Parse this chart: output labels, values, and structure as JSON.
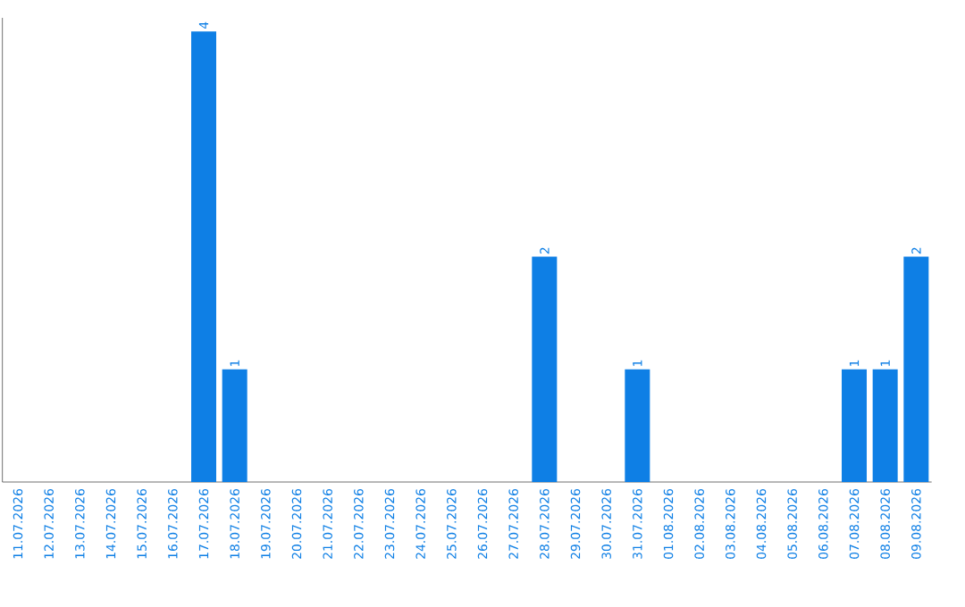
{
  "chart_data": {
    "type": "bar",
    "categories": [
      "11.07.2026",
      "12.07.2026",
      "13.07.2026",
      "14.07.2026",
      "15.07.2026",
      "16.07.2026",
      "17.07.2026",
      "18.07.2026",
      "19.07.2026",
      "20.07.2026",
      "21.07.2026",
      "22.07.2026",
      "23.07.2026",
      "24.07.2026",
      "25.07.2026",
      "26.07.2026",
      "27.07.2026",
      "28.07.2026",
      "29.07.2026",
      "30.07.2026",
      "31.07.2026",
      "01.08.2026",
      "02.08.2026",
      "03.08.2026",
      "04.08.2026",
      "05.08.2026",
      "06.08.2026",
      "07.08.2026",
      "08.08.2026",
      "09.08.2026"
    ],
    "values": [
      0,
      0,
      0,
      0,
      0,
      0,
      4,
      1,
      0,
      0,
      0,
      0,
      0,
      0,
      0,
      0,
      0,
      2,
      0,
      0,
      1,
      0,
      0,
      0,
      0,
      0,
      0,
      1,
      1,
      2
    ],
    "value_labels": [
      null,
      null,
      null,
      null,
      null,
      null,
      "4",
      "1",
      null,
      null,
      null,
      null,
      null,
      null,
      null,
      null,
      null,
      "2",
      null,
      null,
      "1",
      null,
      null,
      null,
      null,
      null,
      null,
      "1",
      "1",
      "2"
    ],
    "color": "#0e7fe5",
    "ylim": [
      0,
      4
    ],
    "tick_labels": "x"
  }
}
